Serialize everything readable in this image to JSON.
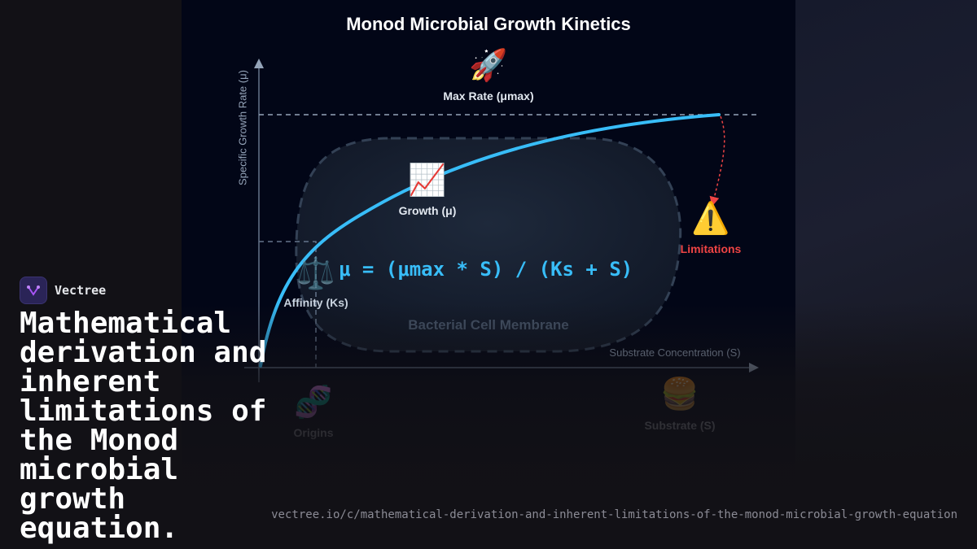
{
  "diagram": {
    "title": "Monod Microbial Growth Kinetics",
    "y_axis_label": "Specific Growth Rate (μ)",
    "x_axis_label": "Substrate Concentration (S)",
    "formula": "μ = (μmax * S) / (Ks + S)",
    "membrane_label": "Bacterial Cell Membrane",
    "nodes": [
      {
        "icon": "rocket-icon",
        "glyph": "🚀",
        "label": "Max Rate (μmax)"
      },
      {
        "icon": "chart-increasing-icon",
        "glyph": "📈",
        "label": "Growth (μ)"
      },
      {
        "icon": "warning-icon",
        "glyph": "⚠️",
        "label": "Limitations"
      },
      {
        "icon": "balance-scale-icon",
        "glyph": "⚖️",
        "label": "Affinity (Ks)"
      },
      {
        "icon": "dna-icon",
        "glyph": "🧬",
        "label": "Origins"
      },
      {
        "icon": "burger-icon",
        "glyph": "🍔",
        "label": "Substrate (S)"
      }
    ],
    "colors": {
      "curve": "#38bdf8",
      "limitation": "#ef4444",
      "panel": "#020617"
    }
  },
  "brand": {
    "name": "Vectree"
  },
  "headline": "Mathematical derivation and inherent limitations of the Monod microbial growth equation.",
  "url": "vectree.io/c/mathematical-derivation-and-inherent-limitations-of-the-monod-microbial-growth-equation"
}
